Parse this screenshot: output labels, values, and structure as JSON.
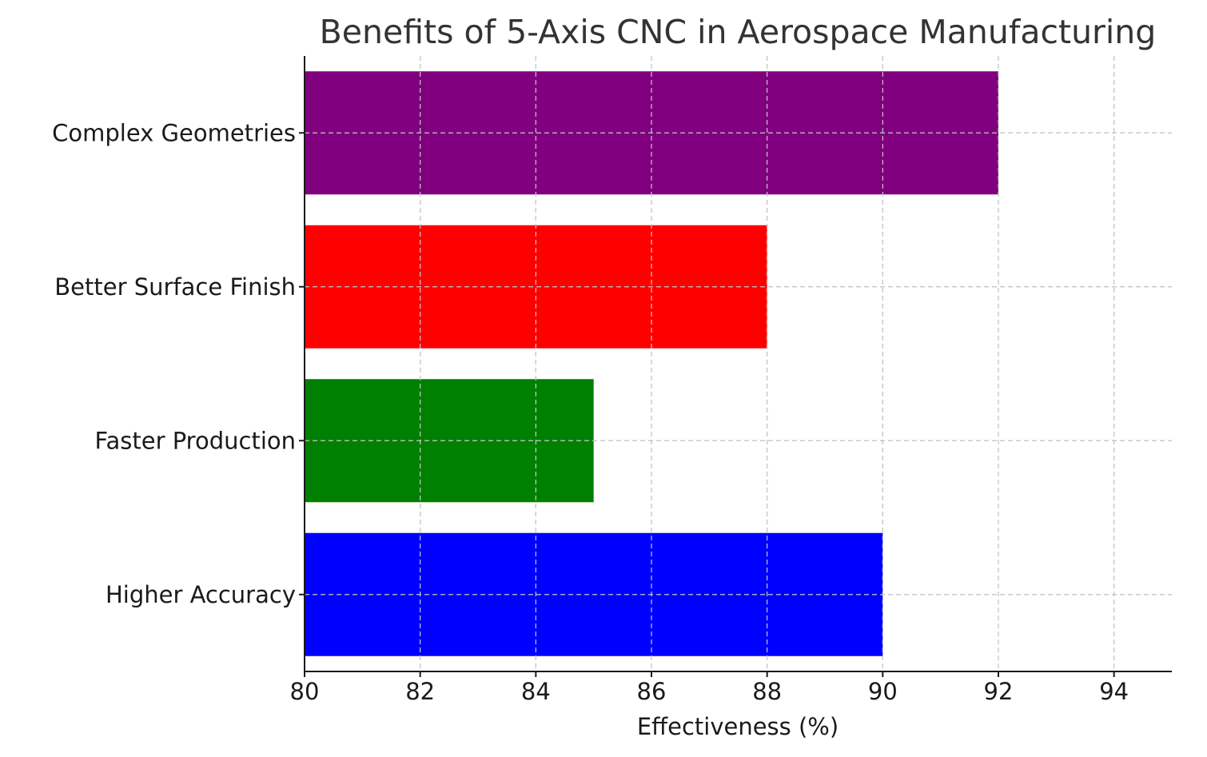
{
  "chart_data": {
    "type": "bar",
    "orientation": "horizontal",
    "title": "Benefits of 5-Axis CNC in Aerospace Manufacturing",
    "xlabel": "Effectiveness (%)",
    "ylabel": "",
    "categories": [
      "Higher Accuracy",
      "Faster Production",
      "Better Surface Finish",
      "Complex Geometries"
    ],
    "values": [
      90,
      85,
      88,
      92
    ],
    "colors": [
      "#0000ff",
      "#008000",
      "#ff0000",
      "#800080"
    ],
    "xlim": [
      80,
      95
    ],
    "xticks": [
      "80",
      "82",
      "84",
      "86",
      "88",
      "90",
      "92",
      "94"
    ],
    "grid": true
  }
}
